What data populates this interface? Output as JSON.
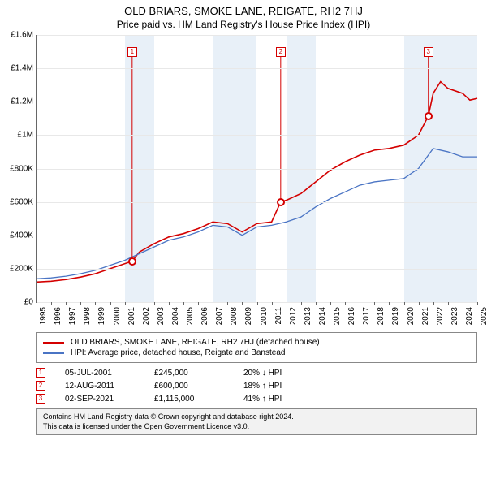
{
  "title": "OLD BRIARS, SMOKE LANE, REIGATE, RH2 7HJ",
  "subtitle": "Price paid vs. HM Land Registry's House Price Index (HPI)",
  "chart": {
    "type": "line",
    "background_color": "#ffffff",
    "grid_color": "#e8e8e8",
    "x_years": [
      1995,
      1996,
      1997,
      1998,
      1999,
      2000,
      2001,
      2002,
      2003,
      2004,
      2005,
      2006,
      2007,
      2008,
      2009,
      2010,
      2011,
      2012,
      2013,
      2014,
      2015,
      2016,
      2017,
      2018,
      2019,
      2020,
      2021,
      2022,
      2023,
      2024,
      2025
    ],
    "xlim": [
      1995,
      2025
    ],
    "ylim": [
      0,
      1600000
    ],
    "ytick_step": 200000,
    "ytick_labels": [
      "£0",
      "£200K",
      "£400K",
      "£600K",
      "£800K",
      "£1M",
      "£1.2M",
      "£1.4M",
      "£1.6M"
    ],
    "band_years": [
      2001,
      2002,
      2007,
      2008,
      2009,
      2012,
      2013,
      2020,
      2021,
      2022,
      2023,
      2024
    ],
    "band_color": "#e8f0f8",
    "series": [
      {
        "name": "OLD BRIARS, SMOKE LANE, REIGATE, RH2 7HJ (detached house)",
        "color": "#d40000",
        "line_width": 1.6,
        "data": [
          [
            1995,
            120000
          ],
          [
            1996,
            125000
          ],
          [
            1997,
            135000
          ],
          [
            1998,
            150000
          ],
          [
            1999,
            170000
          ],
          [
            2000,
            200000
          ],
          [
            2001.51,
            245000
          ],
          [
            2002,
            300000
          ],
          [
            2003,
            350000
          ],
          [
            2004,
            390000
          ],
          [
            2005,
            410000
          ],
          [
            2006,
            440000
          ],
          [
            2007,
            480000
          ],
          [
            2008,
            470000
          ],
          [
            2009,
            420000
          ],
          [
            2010,
            470000
          ],
          [
            2011,
            480000
          ],
          [
            2011.62,
            600000
          ],
          [
            2012,
            610000
          ],
          [
            2013,
            650000
          ],
          [
            2014,
            720000
          ],
          [
            2015,
            790000
          ],
          [
            2016,
            840000
          ],
          [
            2017,
            880000
          ],
          [
            2018,
            910000
          ],
          [
            2019,
            920000
          ],
          [
            2020,
            940000
          ],
          [
            2021,
            1000000
          ],
          [
            2021.67,
            1115000
          ],
          [
            2022,
            1250000
          ],
          [
            2022.5,
            1320000
          ],
          [
            2023,
            1280000
          ],
          [
            2024,
            1250000
          ],
          [
            2024.5,
            1210000
          ],
          [
            2025,
            1220000
          ]
        ]
      },
      {
        "name": "HPI: Average price, detached house, Reigate and Banstead",
        "color": "#4a74c4",
        "line_width": 1.3,
        "data": [
          [
            1995,
            140000
          ],
          [
            1996,
            145000
          ],
          [
            1997,
            155000
          ],
          [
            1998,
            170000
          ],
          [
            1999,
            190000
          ],
          [
            2000,
            220000
          ],
          [
            2001,
            250000
          ],
          [
            2002,
            290000
          ],
          [
            2003,
            330000
          ],
          [
            2004,
            370000
          ],
          [
            2005,
            390000
          ],
          [
            2006,
            420000
          ],
          [
            2007,
            460000
          ],
          [
            2008,
            450000
          ],
          [
            2009,
            400000
          ],
          [
            2010,
            450000
          ],
          [
            2011,
            460000
          ],
          [
            2012,
            480000
          ],
          [
            2013,
            510000
          ],
          [
            2014,
            570000
          ],
          [
            2015,
            620000
          ],
          [
            2016,
            660000
          ],
          [
            2017,
            700000
          ],
          [
            2018,
            720000
          ],
          [
            2019,
            730000
          ],
          [
            2020,
            740000
          ],
          [
            2021,
            800000
          ],
          [
            2022,
            920000
          ],
          [
            2023,
            900000
          ],
          [
            2024,
            870000
          ],
          [
            2025,
            870000
          ]
        ]
      }
    ],
    "markers": [
      {
        "num": "1",
        "year": 2001.51,
        "price": 245000,
        "date": "05-JUL-2001",
        "diff_pct": "20%",
        "diff_dir": "↓",
        "diff_suffix": "HPI",
        "color": "#d40000",
        "label_y": 1500000
      },
      {
        "num": "2",
        "year": 2011.62,
        "price": 600000,
        "date": "12-AUG-2011",
        "diff_pct": "18%",
        "diff_dir": "↑",
        "diff_suffix": "HPI",
        "color": "#d40000",
        "label_y": 1500000
      },
      {
        "num": "3",
        "year": 2021.67,
        "price": 1115000,
        "date": "02-SEP-2021",
        "diff_pct": "41%",
        "diff_dir": "↑",
        "diff_suffix": "HPI",
        "color": "#d40000",
        "label_y": 1500000
      }
    ],
    "marker_price_labels": [
      "£245,000",
      "£600,000",
      "£1,115,000"
    ]
  },
  "footer_line1": "Contains HM Land Registry data © Crown copyright and database right 2024.",
  "footer_line2": "This data is licensed under the Open Government Licence v3.0."
}
